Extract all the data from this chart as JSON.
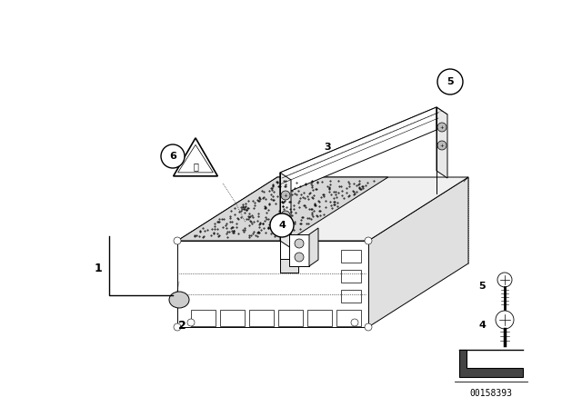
{
  "bg_color": "#ffffff",
  "part_number": "00158393",
  "line_color": "#000000",
  "lw": 0.7
}
